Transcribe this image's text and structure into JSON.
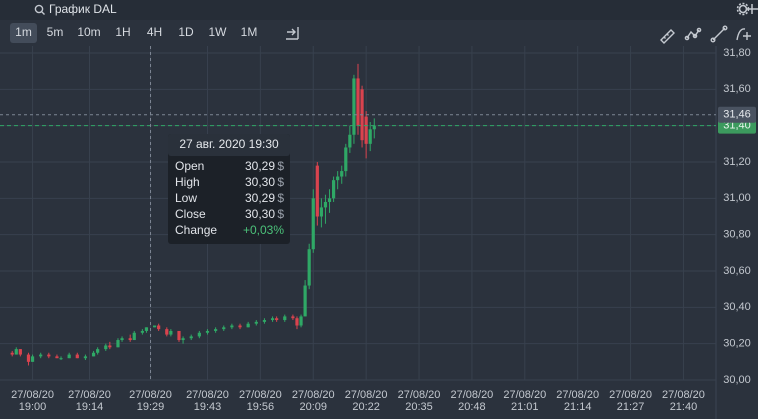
{
  "header": {
    "search": "График DAL"
  },
  "toolbar": {
    "timeframes": [
      "1m",
      "5m",
      "10m",
      "1H",
      "4H",
      "1D",
      "1W",
      "1M"
    ],
    "active": "1m"
  },
  "chart_data": {
    "type": "candlestick",
    "up_color": "#2fa866",
    "down_color": "#d9434e",
    "grid": true,
    "ylim": [
      30.0,
      31.8
    ],
    "yticks": [
      {
        "value": 30.0,
        "label": "30,00"
      },
      {
        "value": 30.2,
        "label": "30,20"
      },
      {
        "value": 30.4,
        "label": "30,40"
      },
      {
        "value": 30.6,
        "label": "30,60"
      },
      {
        "value": 30.8,
        "label": "30,80"
      },
      {
        "value": 31.0,
        "label": "31,00"
      },
      {
        "value": 31.2,
        "label": "31,20"
      },
      {
        "value": 31.4,
        "label": "31,40"
      },
      {
        "value": 31.6,
        "label": "31,60"
      },
      {
        "value": 31.8,
        "label": "31,80"
      }
    ],
    "xlim": [
      "18:52",
      "21:48"
    ],
    "xticks": [
      {
        "date": "27/08/20",
        "time": "19:00"
      },
      {
        "date": "27/08/20",
        "time": "19:14"
      },
      {
        "date": "27/08/20",
        "time": "19:29"
      },
      {
        "date": "27/08/20",
        "time": "19:43"
      },
      {
        "date": "27/08/20",
        "time": "19:56"
      },
      {
        "date": "27/08/20",
        "time": "20:09"
      },
      {
        "date": "27/08/20",
        "time": "20:22"
      },
      {
        "date": "27/08/20",
        "time": "20:35"
      },
      {
        "date": "27/08/20",
        "time": "20:48"
      },
      {
        "date": "27/08/20",
        "time": "21:01"
      },
      {
        "date": "27/08/20",
        "time": "21:14"
      },
      {
        "date": "27/08/20",
        "time": "21:27"
      },
      {
        "date": "27/08/20",
        "time": "21:40"
      }
    ],
    "candles": [
      {
        "x": "18:55",
        "open": 30.15,
        "high": 30.16,
        "low": 30.13,
        "close": 30.14
      },
      {
        "x": "18:56",
        "open": 30.14,
        "high": 30.18,
        "low": 30.14,
        "close": 30.17
      },
      {
        "x": "18:57",
        "open": 30.17,
        "high": 30.17,
        "low": 30.13,
        "close": 30.14
      },
      {
        "x": "18:59",
        "open": 30.14,
        "high": 30.15,
        "low": 30.08,
        "close": 30.1
      },
      {
        "x": "19:00",
        "open": 30.1,
        "high": 30.14,
        "low": 30.1,
        "close": 30.13
      },
      {
        "x": "19:02",
        "open": 30.13,
        "high": 30.15,
        "low": 30.12,
        "close": 30.14
      },
      {
        "x": "19:04",
        "open": 30.14,
        "high": 30.15,
        "low": 30.12,
        "close": 30.13
      },
      {
        "x": "19:06",
        "open": 30.13,
        "high": 30.14,
        "low": 30.12,
        "close": 30.12
      },
      {
        "x": "19:07",
        "open": 30.12,
        "high": 30.13,
        "low": 30.11,
        "close": 30.12
      },
      {
        "x": "19:09",
        "open": 30.12,
        "high": 30.15,
        "low": 30.12,
        "close": 30.14
      },
      {
        "x": "19:11",
        "open": 30.14,
        "high": 30.15,
        "low": 30.12,
        "close": 30.12
      },
      {
        "x": "19:13",
        "open": 30.12,
        "high": 30.14,
        "low": 30.11,
        "close": 30.13
      },
      {
        "x": "19:15",
        "open": 30.13,
        "high": 30.16,
        "low": 30.13,
        "close": 30.15
      },
      {
        "x": "19:16",
        "open": 30.15,
        "high": 30.18,
        "low": 30.14,
        "close": 30.17
      },
      {
        "x": "19:18",
        "open": 30.17,
        "high": 30.2,
        "low": 30.16,
        "close": 30.19
      },
      {
        "x": "19:19",
        "open": 30.19,
        "high": 30.21,
        "low": 30.17,
        "close": 30.18
      },
      {
        "x": "19:21",
        "open": 30.18,
        "high": 30.23,
        "low": 30.18,
        "close": 30.22
      },
      {
        "x": "19:22",
        "open": 30.22,
        "high": 30.24,
        "low": 30.21,
        "close": 30.23
      },
      {
        "x": "19:24",
        "open": 30.23,
        "high": 30.25,
        "low": 30.21,
        "close": 30.22
      },
      {
        "x": "19:25",
        "open": 30.22,
        "high": 30.27,
        "low": 30.22,
        "close": 30.26
      },
      {
        "x": "19:27",
        "open": 30.26,
        "high": 30.28,
        "low": 30.25,
        "close": 30.27
      },
      {
        "x": "19:28",
        "open": 30.27,
        "high": 30.29,
        "low": 30.26,
        "close": 30.29
      },
      {
        "x": "19:30",
        "open": 30.29,
        "high": 30.3,
        "low": 30.29,
        "close": 30.3
      },
      {
        "x": "19:31",
        "open": 30.3,
        "high": 30.31,
        "low": 30.27,
        "close": 30.28
      },
      {
        "x": "19:33",
        "open": 30.28,
        "high": 30.29,
        "low": 30.24,
        "close": 30.25
      },
      {
        "x": "19:34",
        "open": 30.25,
        "high": 30.28,
        "low": 30.24,
        "close": 30.27
      },
      {
        "x": "19:36",
        "open": 30.27,
        "high": 30.27,
        "low": 30.21,
        "close": 30.22
      },
      {
        "x": "19:37",
        "open": 30.22,
        "high": 30.24,
        "low": 30.2,
        "close": 30.23
      },
      {
        "x": "19:39",
        "open": 30.23,
        "high": 30.25,
        "low": 30.22,
        "close": 30.24
      },
      {
        "x": "19:41",
        "open": 30.24,
        "high": 30.27,
        "low": 30.23,
        "close": 30.26
      },
      {
        "x": "19:43",
        "open": 30.26,
        "high": 30.28,
        "low": 30.25,
        "close": 30.27
      },
      {
        "x": "19:45",
        "open": 30.27,
        "high": 30.29,
        "low": 30.26,
        "close": 30.28
      },
      {
        "x": "19:47",
        "open": 30.28,
        "high": 30.3,
        "low": 30.27,
        "close": 30.29
      },
      {
        "x": "19:49",
        "open": 30.29,
        "high": 30.31,
        "low": 30.28,
        "close": 30.3
      },
      {
        "x": "19:51",
        "open": 30.3,
        "high": 30.31,
        "low": 30.28,
        "close": 30.29
      },
      {
        "x": "19:53",
        "open": 30.29,
        "high": 30.32,
        "low": 30.29,
        "close": 30.31
      },
      {
        "x": "19:55",
        "open": 30.31,
        "high": 30.33,
        "low": 30.3,
        "close": 30.32
      },
      {
        "x": "19:57",
        "open": 30.32,
        "high": 30.34,
        "low": 30.31,
        "close": 30.33
      },
      {
        "x": "19:59",
        "open": 30.33,
        "high": 30.35,
        "low": 30.32,
        "close": 30.34
      },
      {
        "x": "20:00",
        "open": 30.34,
        "high": 30.35,
        "low": 30.32,
        "close": 30.33
      },
      {
        "x": "20:02",
        "open": 30.33,
        "high": 30.36,
        "low": 30.32,
        "close": 30.35
      },
      {
        "x": "20:04",
        "open": 30.35,
        "high": 30.36,
        "low": 30.33,
        "close": 30.34
      },
      {
        "x": "20:05",
        "open": 30.34,
        "high": 30.35,
        "low": 30.28,
        "close": 30.3
      },
      {
        "x": "20:06",
        "open": 30.3,
        "high": 30.36,
        "low": 30.29,
        "close": 30.35
      },
      {
        "x": "20:07",
        "open": 30.35,
        "high": 30.55,
        "low": 30.35,
        "close": 30.52
      },
      {
        "x": "20:08",
        "open": 30.52,
        "high": 30.75,
        "low": 30.5,
        "close": 30.72
      },
      {
        "x": "20:09",
        "open": 30.72,
        "high": 31.05,
        "low": 30.7,
        "close": 31.0
      },
      {
        "x": "20:10",
        "open": 31.18,
        "high": 31.2,
        "low": 30.85,
        "close": 30.9
      },
      {
        "x": "20:11",
        "open": 30.9,
        "high": 31.0,
        "low": 30.84,
        "close": 30.95
      },
      {
        "x": "20:12",
        "open": 30.95,
        "high": 31.02,
        "low": 30.86,
        "close": 30.98
      },
      {
        "x": "20:13",
        "open": 30.98,
        "high": 31.05,
        "low": 30.92,
        "close": 31.0
      },
      {
        "x": "20:14",
        "open": 31.0,
        "high": 31.12,
        "low": 30.98,
        "close": 31.1
      },
      {
        "x": "20:15",
        "open": 31.1,
        "high": 31.15,
        "low": 31.05,
        "close": 31.12
      },
      {
        "x": "20:16",
        "open": 31.12,
        "high": 31.18,
        "low": 31.08,
        "close": 31.15
      },
      {
        "x": "20:17",
        "open": 31.15,
        "high": 31.3,
        "low": 31.12,
        "close": 31.28
      },
      {
        "x": "20:18",
        "open": 31.28,
        "high": 31.4,
        "low": 31.25,
        "close": 31.35
      },
      {
        "x": "20:19",
        "open": 31.35,
        "high": 31.68,
        "low": 31.3,
        "close": 31.66
      },
      {
        "x": "20:20",
        "open": 31.66,
        "high": 31.74,
        "low": 31.35,
        "close": 31.4
      },
      {
        "x": "20:21",
        "open": 31.6,
        "high": 31.62,
        "low": 31.28,
        "close": 31.32
      },
      {
        "x": "20:22",
        "open": 31.45,
        "high": 31.48,
        "low": 31.22,
        "close": 31.3
      },
      {
        "x": "20:23",
        "open": 31.3,
        "high": 31.42,
        "low": 31.26,
        "close": 31.38
      },
      {
        "x": "20:24",
        "open": 31.38,
        "high": 31.44,
        "low": 31.33,
        "close": 31.4
      }
    ],
    "crosshair": {
      "x": "19:29",
      "value": 31.46,
      "label": "31,46"
    },
    "last_price": {
      "value": 31.4,
      "label": "31,40"
    },
    "tooltip": {
      "title": "27 авг. 2020 19:30",
      "rows": [
        {
          "label": "Open",
          "value": "30,29",
          "unit": "$"
        },
        {
          "label": "High",
          "value": "30,30",
          "unit": "$"
        },
        {
          "label": "Low",
          "value": "30,29",
          "unit": "$"
        },
        {
          "label": "Close",
          "value": "30,30",
          "unit": "$"
        },
        {
          "label": "Change",
          "value": "+0,03%",
          "color": "#4cc27a"
        }
      ]
    }
  }
}
